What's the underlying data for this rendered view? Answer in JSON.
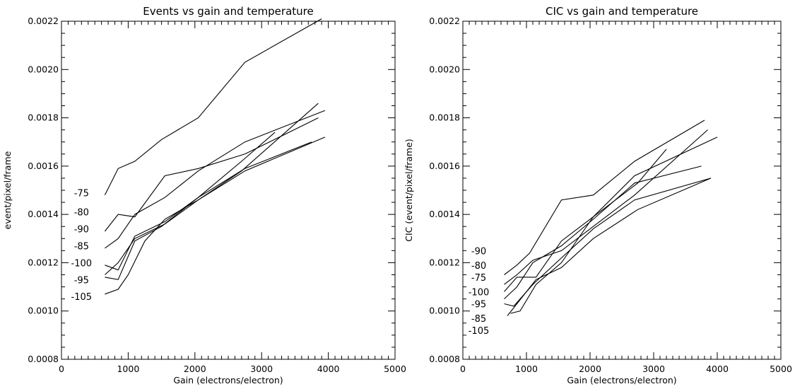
{
  "chart_data": [
    {
      "type": "line",
      "title": "Events vs gain and temperature",
      "xlabel": "Gain (electrons/electron)",
      "ylabel": "event/pixel/frame",
      "xlim": [
        0,
        5000
      ],
      "ylim": [
        0.0008,
        0.0022
      ],
      "xticks": [
        0,
        1000,
        2000,
        3000,
        4000,
        5000
      ],
      "xtick_labels": [
        "0",
        "1000",
        "2000",
        "3000",
        "4000",
        "5000"
      ],
      "yticks": [
        0.0008,
        0.001,
        0.0012,
        0.0014,
        0.0016,
        0.0018,
        0.002,
        0.0022
      ],
      "ytick_labels": [
        "0.0008",
        "0.0010",
        "0.0012",
        "0.0014",
        "0.0016",
        "0.0018",
        "0.0020",
        "0.0022"
      ],
      "grid": false,
      "series": [
        {
          "x": [
            650,
            850,
            1100,
            1500,
            2050,
            2750,
            3900
          ],
          "y": [
            0.00148,
            0.00159,
            0.00162,
            0.00171,
            0.0018,
            0.00203,
            0.00221
          ]
        },
        {
          "x": [
            650,
            850,
            1100,
            1550,
            2050,
            2750,
            3850
          ],
          "y": [
            0.00133,
            0.0014,
            0.00139,
            0.00156,
            0.00159,
            0.00165,
            0.0018
          ]
        },
        {
          "x": [
            650,
            850,
            1100,
            1550,
            2050,
            2750,
            3950
          ],
          "y": [
            0.00126,
            0.0013,
            0.0014,
            0.00147,
            0.00158,
            0.0017,
            0.00183
          ]
        },
        {
          "x": [
            650,
            850,
            1100,
            1550,
            2050,
            2750,
            3750
          ],
          "y": [
            0.00119,
            0.00117,
            0.00131,
            0.00137,
            0.00147,
            0.00159,
            0.0017
          ]
        },
        {
          "x": [
            650,
            850,
            1100,
            1550,
            2050,
            2700,
            3850
          ],
          "y": [
            0.00115,
            0.0012,
            0.0013,
            0.00136,
            0.00146,
            0.00158,
            0.00186
          ]
        },
        {
          "x": [
            650,
            850,
            1100,
            1500,
            2050,
            2700,
            3200
          ],
          "y": [
            0.00114,
            0.00113,
            0.00129,
            0.00135,
            0.00147,
            0.00162,
            0.00174
          ]
        },
        {
          "x": [
            650,
            850,
            1000,
            1250,
            1550,
            2050,
            2750,
            3950
          ],
          "y": [
            0.00107,
            0.00109,
            0.00115,
            0.00129,
            0.00138,
            0.00146,
            0.00158,
            0.00172
          ]
        }
      ],
      "annotations": [
        {
          "text": "-75",
          "x": 300,
          "y": 0.00149
        },
        {
          "text": "-80",
          "x": 300,
          "y": 0.00141
        },
        {
          "text": "-90",
          "x": 300,
          "y": 0.00134
        },
        {
          "text": "-85",
          "x": 300,
          "y": 0.00127
        },
        {
          "text": "-100",
          "x": 300,
          "y": 0.0012
        },
        {
          "text": "-95",
          "x": 300,
          "y": 0.00113
        },
        {
          "text": "-105",
          "x": 300,
          "y": 0.00106
        }
      ]
    },
    {
      "type": "line",
      "title": "CIC vs gain and temperature",
      "xlabel": "Gain (electrons/electron)",
      "ylabel": "CIC (event/pixel/frame)",
      "xlim": [
        0,
        5000
      ],
      "ylim": [
        0.0008,
        0.0022
      ],
      "xticks": [
        0,
        1000,
        2000,
        3000,
        4000,
        5000
      ],
      "xtick_labels": [
        "0",
        "1000",
        "2000",
        "3000",
        "4000",
        "5000"
      ],
      "yticks": [
        0.0008,
        0.001,
        0.0012,
        0.0014,
        0.0016,
        0.0018,
        0.002,
        0.0022
      ],
      "ytick_labels": [
        "0.0008",
        "0.0010",
        "0.0012",
        "0.0014",
        "0.0016",
        "0.0018",
        "0.0020",
        "0.0022"
      ],
      "grid": false,
      "series": [
        {
          "x": [
            650,
            850,
            1050,
            1550,
            2050,
            2700,
            3800
          ],
          "y": [
            0.00115,
            0.00119,
            0.00124,
            0.00146,
            0.00148,
            0.00162,
            0.00179
          ]
        },
        {
          "x": [
            650,
            850,
            1100,
            1550,
            2050,
            2700,
            3850
          ],
          "y": [
            0.00111,
            0.00115,
            0.00121,
            0.00125,
            0.00135,
            0.00148,
            0.00175
          ]
        },
        {
          "x": [
            650,
            850,
            1150,
            1550,
            2050,
            2700,
            4000
          ],
          "y": [
            0.00108,
            0.00114,
            0.00114,
            0.00129,
            0.00139,
            0.00156,
            0.00172
          ]
        },
        {
          "x": [
            650,
            850,
            1100,
            1550,
            2050,
            2700,
            3750
          ],
          "y": [
            0.00105,
            0.0011,
            0.0012,
            0.00127,
            0.00138,
            0.00153,
            0.0016
          ]
        },
        {
          "x": [
            650,
            800,
            1100,
            1550,
            2050,
            2700,
            3900
          ],
          "y": [
            0.00103,
            0.00102,
            0.00111,
            0.00122,
            0.00134,
            0.00146,
            0.00155
          ]
        },
        {
          "x": [
            750,
            900,
            1150,
            1550,
            2050,
            2750,
            3200
          ],
          "y": [
            0.00099,
            0.001,
            0.00111,
            0.0012,
            0.00139,
            0.00153,
            0.00167
          ]
        },
        {
          "x": [
            700,
            850,
            1150,
            1550,
            2050,
            2750,
            3900
          ],
          "y": [
            0.00098,
            0.00103,
            0.00113,
            0.00118,
            0.0013,
            0.00142,
            0.00155
          ]
        }
      ],
      "annotations": [
        {
          "text": "-90",
          "x": 250,
          "y": 0.00125
        },
        {
          "text": "-80",
          "x": 250,
          "y": 0.00119
        },
        {
          "text": "-75",
          "x": 250,
          "y": 0.00114
        },
        {
          "text": "-100",
          "x": 250,
          "y": 0.00108
        },
        {
          "text": "-95",
          "x": 250,
          "y": 0.00103
        },
        {
          "text": "-85",
          "x": 250,
          "y": 0.00097
        },
        {
          "text": "-105",
          "x": 250,
          "y": 0.00092
        }
      ]
    }
  ]
}
